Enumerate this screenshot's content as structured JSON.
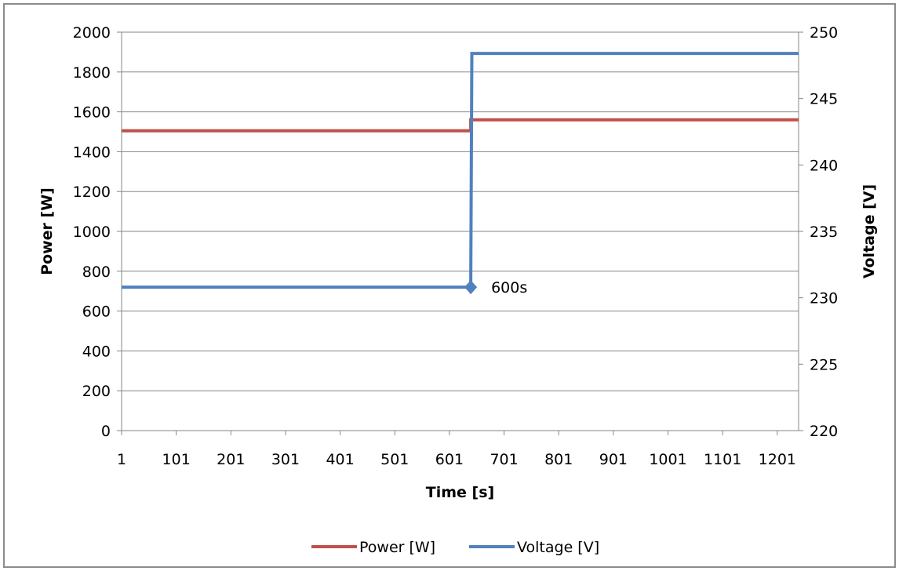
{
  "chart_data": {
    "type": "line",
    "title": "",
    "xlabel": "Time [s]",
    "ylabel_left": "Power [W]",
    "ylabel_right": "Voltage [V]",
    "x_ticks": [
      "1",
      "101",
      "201",
      "301",
      "401",
      "501",
      "601",
      "701",
      "801",
      "901",
      "1001",
      "1101",
      "1201"
    ],
    "xlim": [
      1,
      1240
    ],
    "ylim_left": [
      0,
      2000
    ],
    "ylim_right": [
      220,
      250
    ],
    "y_ticks_left": [
      "0",
      "200",
      "400",
      "600",
      "800",
      "1000",
      "1200",
      "1400",
      "1600",
      "1800",
      "2000"
    ],
    "y_ticks_right": [
      "220",
      "225",
      "230",
      "235",
      "240",
      "245",
      "250"
    ],
    "grid": true,
    "legend_position": "bottom",
    "series": [
      {
        "name": "Power [W]",
        "axis": "left",
        "color": "#c0504d",
        "x": [
          1,
          640,
          640,
          1240
        ],
        "y": [
          1505,
          1505,
          1560,
          1560
        ]
      },
      {
        "name": "Voltage [V]",
        "axis": "right",
        "color": "#4f81bd",
        "x": [
          1,
          640,
          642,
          1240
        ],
        "y": [
          230.8,
          230.8,
          248.4,
          248.4
        ]
      }
    ],
    "annotations": [
      {
        "text": "600s",
        "x": 640,
        "y": 230.8,
        "axis": "right"
      }
    ]
  }
}
